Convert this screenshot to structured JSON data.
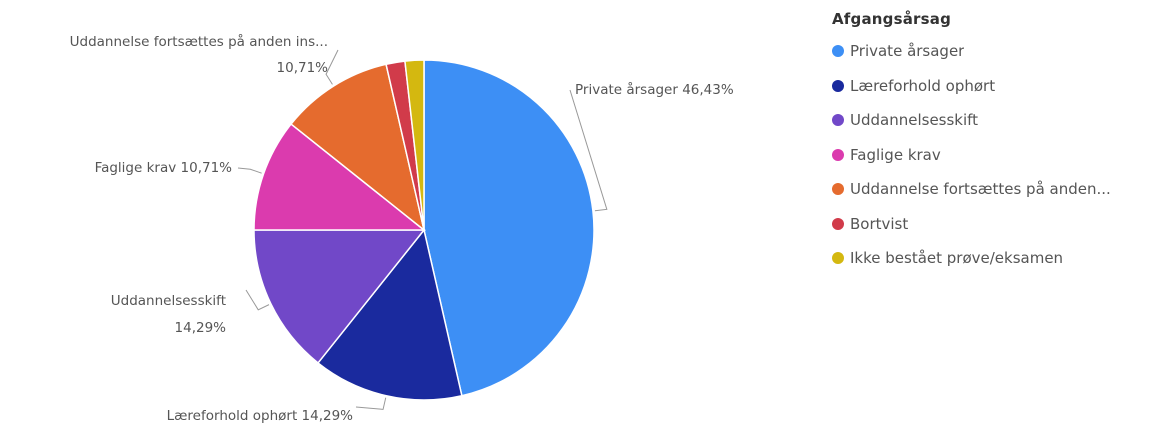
{
  "header": {
    "cut_title": ""
  },
  "legend": {
    "title": "Afgangsårsag"
  },
  "chart_data": {
    "type": "pie",
    "title": "",
    "legend_title": "Afgangsårsag",
    "legend_position": "right",
    "slices": [
      {
        "name": "Private årsager",
        "legend_label": "Private årsager",
        "value": 46.43,
        "label_lines": [
          "Private årsager 46,43%"
        ],
        "color": "#3D8FF5"
      },
      {
        "name": "Læreforhold ophørt",
        "legend_label": "Læreforhold ophørt",
        "value": 14.29,
        "label_lines": [
          "Læreforhold ophørt 14,29%"
        ],
        "color": "#1A2A9E"
      },
      {
        "name": "Uddannelsesskift",
        "legend_label": "Uddannelsesskift",
        "value": 14.29,
        "label_lines": [
          "Uddannelsesskift",
          "14,29%"
        ],
        "color": "#7148C8"
      },
      {
        "name": "Faglige krav",
        "legend_label": "Faglige krav",
        "value": 10.71,
        "label_lines": [
          "Faglige krav 10,71%"
        ],
        "color": "#DB3BAE"
      },
      {
        "name": "Uddannelse fortsættes på anden institution",
        "legend_label": "Uddannelse fortsættes på anden...",
        "value": 10.71,
        "label_lines": [
          "Uddannelse fortsættes på anden ins...",
          "10,71%"
        ],
        "color": "#E56B2E"
      },
      {
        "name": "Bortvist",
        "legend_label": "Bortvist",
        "value": 1.79,
        "label_lines": [],
        "color": "#D13B4A"
      },
      {
        "name": "Ikke bestået prøve/eksamen",
        "legend_label": "Ikke bestået prøve/eksamen",
        "value": 1.79,
        "label_lines": [],
        "color": "#D4B810"
      }
    ]
  }
}
